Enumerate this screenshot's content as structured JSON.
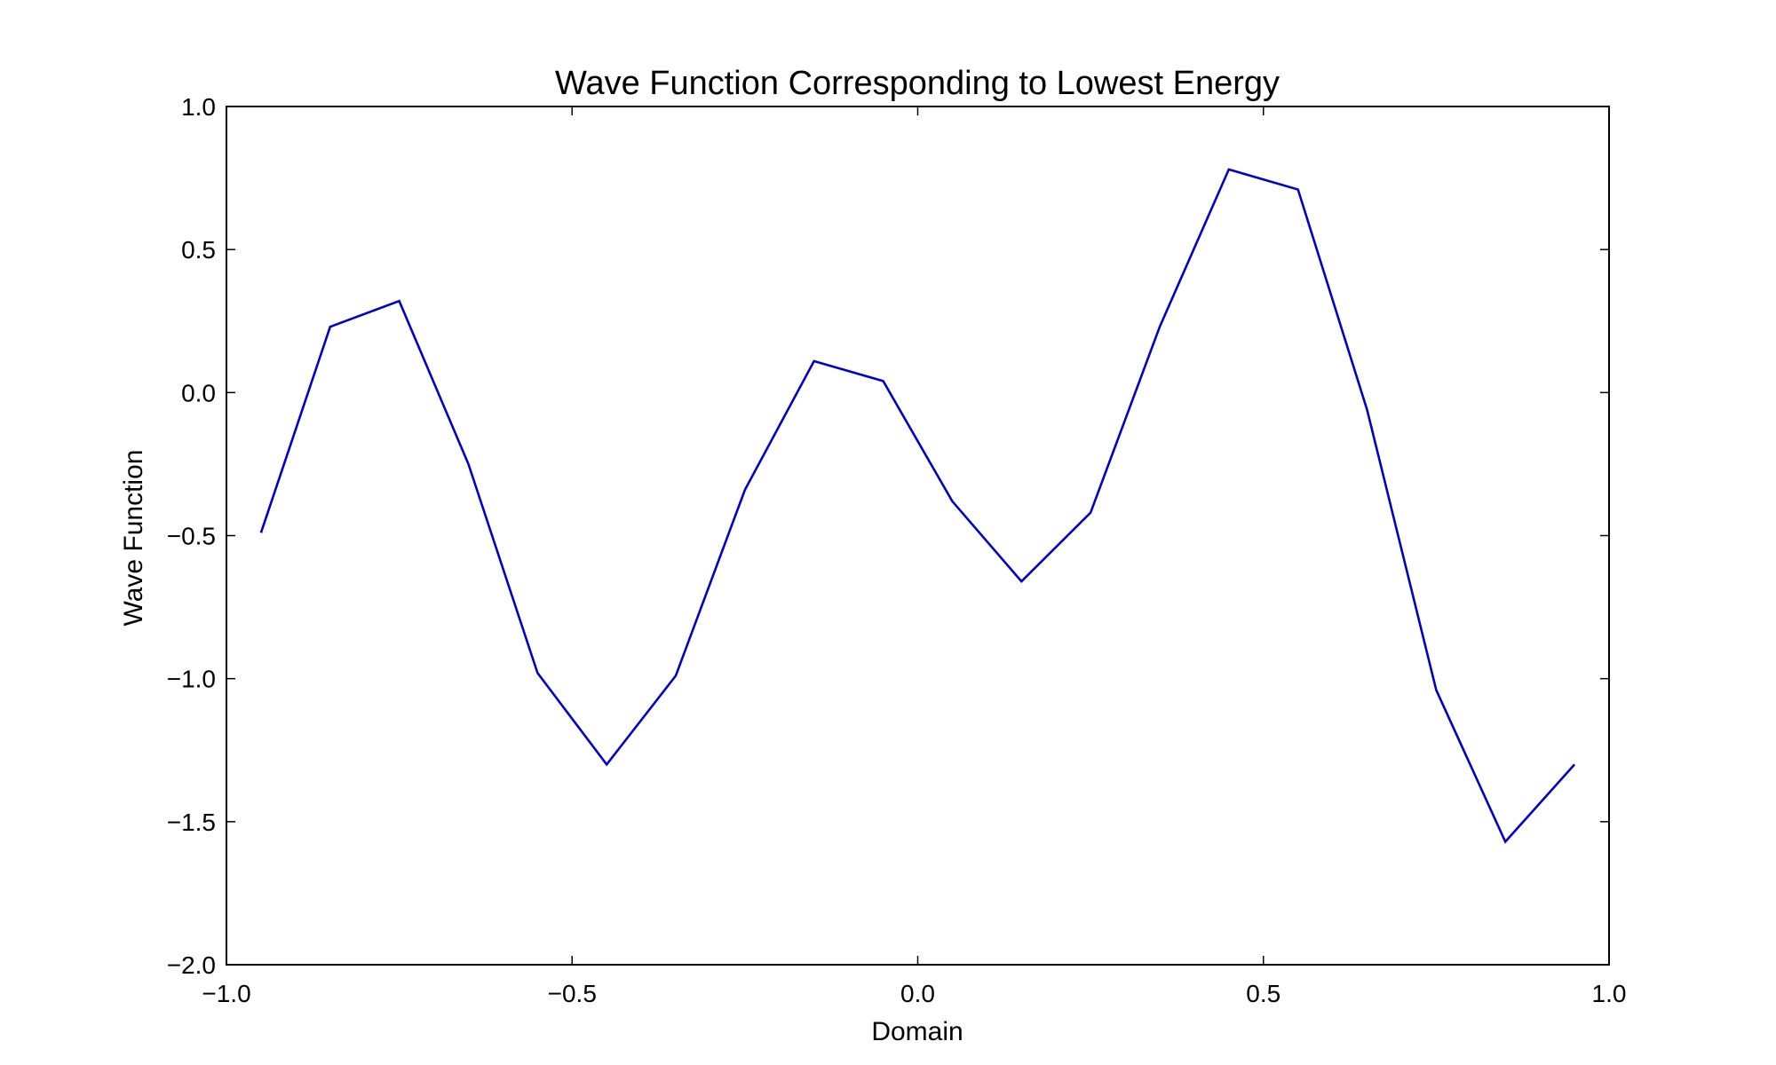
{
  "chart_data": {
    "type": "line",
    "title": "Wave Function Corresponding to Lowest Energy",
    "xlabel": "Domain",
    "ylabel": "Wave Function",
    "xlim": [
      -1.0,
      1.0
    ],
    "ylim": [
      -2.0,
      1.0
    ],
    "grid": false,
    "x_ticks": [
      -1.0,
      -0.5,
      0.0,
      0.5,
      1.0
    ],
    "x_tick_labels": [
      "−1.0",
      "−0.5",
      "0.0",
      "0.5",
      "1.0"
    ],
    "y_ticks": [
      -2.0,
      -1.5,
      -1.0,
      -0.5,
      0.0,
      0.5,
      1.0
    ],
    "y_tick_labels": [
      "−2.0",
      "−1.5",
      "−1.0",
      "−0.5",
      "0.0",
      "0.5",
      "1.0"
    ],
    "series": [
      {
        "color": "#0000cc",
        "x": [
          -0.95,
          -0.85,
          -0.75,
          -0.65,
          -0.55,
          -0.45,
          -0.35,
          -0.25,
          -0.15,
          -0.05,
          0.05,
          0.15,
          0.25,
          0.35,
          0.45,
          0.55,
          0.65,
          0.75,
          0.85,
          0.95
        ],
        "y": [
          -0.49,
          0.23,
          0.32,
          -0.25,
          -0.98,
          -1.3,
          -0.99,
          -0.34,
          0.11,
          0.04,
          -0.38,
          -0.66,
          -0.42,
          0.23,
          0.78,
          0.71,
          -0.06,
          -1.04,
          -1.57,
          -1.3
        ]
      }
    ]
  }
}
